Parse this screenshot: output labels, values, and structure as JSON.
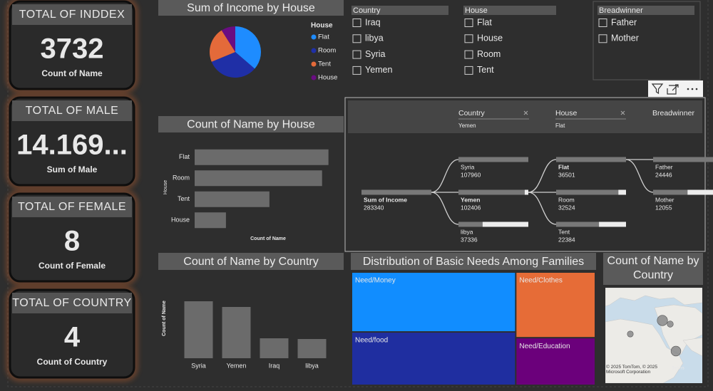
{
  "cards": [
    {
      "title": "TOTAL OF INDDEX",
      "value": 3732,
      "caption": "Count of Name"
    },
    {
      "title": "TOTAL OF MALE",
      "value": "14.169...",
      "caption": "Sum of Male"
    },
    {
      "title": "TOTAL OF FEMALE",
      "value": 8,
      "caption": "Count of Female"
    },
    {
      "title": "TOTAL OF COUNTRY",
      "value": 4,
      "caption": "Count of Country"
    }
  ],
  "income_pie": {
    "type": "pie",
    "title": "Sum of Income by House",
    "legend_title": "House",
    "categories": [
      "Flat",
      "Room",
      "Tent",
      "House"
    ],
    "values": [
      36501,
      32524,
      22384,
      9000
    ],
    "colors": [
      "#1e8cff",
      "#1f2fa6",
      "#e46a3a",
      "#6a0d82"
    ]
  },
  "slicers": [
    {
      "title": "Country",
      "items": [
        "Iraq",
        "libya",
        "Syria",
        "Yemen"
      ]
    },
    {
      "title": "House",
      "items": [
        "Flat",
        "House",
        "Room",
        "Tent"
      ]
    },
    {
      "title": "Breadwinner",
      "items": [
        "Father",
        "Mother"
      ]
    }
  ],
  "house_bar": {
    "type": "bar",
    "orientation": "horizontal",
    "title": "Count of Name by House",
    "x_label": "Count of Name",
    "y_label": "House",
    "categories": [
      "Flat",
      "Room",
      "Tent",
      "House"
    ],
    "values": [
      1360,
      1295,
      760,
      318
    ],
    "xlim": [
      0,
      1500
    ],
    "color": "#6b6b6b"
  },
  "decomposition": {
    "type": "decomposition_tree",
    "headers": [
      {
        "label": "Country",
        "filter": "Yemen"
      },
      {
        "label": "House",
        "filter": "Flat"
      },
      {
        "label": "Breadwinner"
      }
    ],
    "root": {
      "label": "Sum of Income",
      "value": 283340
    },
    "levels": [
      [
        {
          "label": "Syria",
          "value": 107960
        },
        {
          "label": "Yemen",
          "value": 102406
        },
        {
          "label": "libya",
          "value": 37336
        }
      ],
      [
        {
          "label": "Flat",
          "value": 36501
        },
        {
          "label": "Room",
          "value": 32524
        },
        {
          "label": "Tent",
          "value": 22384
        }
      ],
      [
        {
          "label": "Father",
          "value": 24446
        },
        {
          "label": "Mother",
          "value": 12055
        }
      ]
    ]
  },
  "country_bar": {
    "type": "bar",
    "title": "Count of Name by Country",
    "y_label": "Count of Name",
    "categories": [
      "Syria",
      "Yemen",
      "Iraq",
      "libya"
    ],
    "values": [
      1091,
      982,
      382,
      368
    ],
    "ylim": [
      0,
      1500
    ],
    "color": "#6b6b6b"
  },
  "treemap": {
    "type": "treemap",
    "title": "Distribution of Basic Needs Among Families",
    "categories": [
      "Need/Money",
      "Need/food",
      "Need/Clothes",
      "Need/Education"
    ],
    "values": [
      1870,
      1664,
      990,
      715
    ],
    "colors": [
      "#118dff",
      "#1f2ea0",
      "#e66c37",
      "#6b007b"
    ]
  },
  "map": {
    "type": "map",
    "title": "Count of Name by Country",
    "categories": [
      "Syria",
      "Iraq",
      "libya",
      "Yemen"
    ],
    "values": [
      1091,
      382,
      368,
      982
    ],
    "attribution": "© 2025 TomTom, © 2025 Microsoft Corporation",
    "terms": "Terms"
  }
}
